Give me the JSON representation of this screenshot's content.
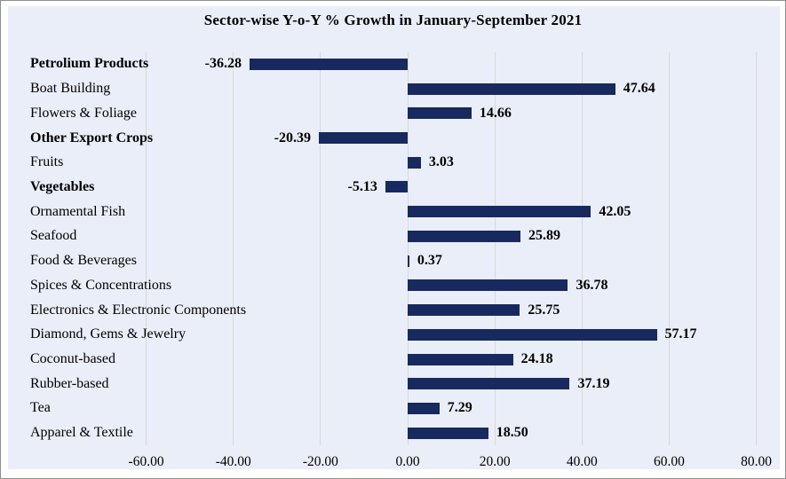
{
  "chart_data": {
    "type": "bar",
    "orientation": "horizontal",
    "title": "Sector-wise Y-o-Y % Growth  in January-September 2021",
    "categories": [
      "Petrolium Products",
      "Boat Building",
      "Flowers & Foliage",
      "Other Export Crops",
      "Fruits",
      "Vegetables",
      "Ornamental Fish",
      "Seafood",
      "Food & Beverages",
      "Spices & Concentrations",
      "Electronics & Electronic Components",
      "Diamond, Gems &  Jewelry",
      "Coconut-based",
      "Rubber-based",
      "Tea",
      "Apparel & Textile"
    ],
    "values": [
      -36.28,
      47.64,
      14.66,
      -20.39,
      3.03,
      -5.13,
      42.05,
      25.89,
      0.37,
      36.78,
      25.75,
      57.17,
      24.18,
      37.19,
      7.29,
      18.5
    ],
    "value_labels": [
      "-36.28",
      "47.64",
      "14.66",
      "-20.39",
      "3.03",
      "-5.13",
      "42.05",
      "25.89",
      "0.37",
      "36.78",
      "25.75",
      "57.17",
      "24.18",
      "37.19",
      "7.29",
      "18.50"
    ],
    "bold_category_indices": [
      0,
      3,
      5
    ],
    "x_ticks": [
      "-60.00",
      "-40.00",
      "-20.00",
      "0.00",
      "20.00",
      "40.00",
      "60.00",
      "80.00"
    ],
    "x_tick_values": [
      -60,
      -40,
      -20,
      0,
      20,
      40,
      60,
      80
    ],
    "xlim": [
      -60,
      80
    ],
    "grid": true,
    "legend": false,
    "value_label_position": "outside-end",
    "colors": {
      "bar": "#17295e",
      "panel_bg": "#eaeef8",
      "gridline": "#d9d9d9",
      "text": "#000000",
      "outer_bg": "#ffffff",
      "border": "#8f8f8f"
    }
  }
}
